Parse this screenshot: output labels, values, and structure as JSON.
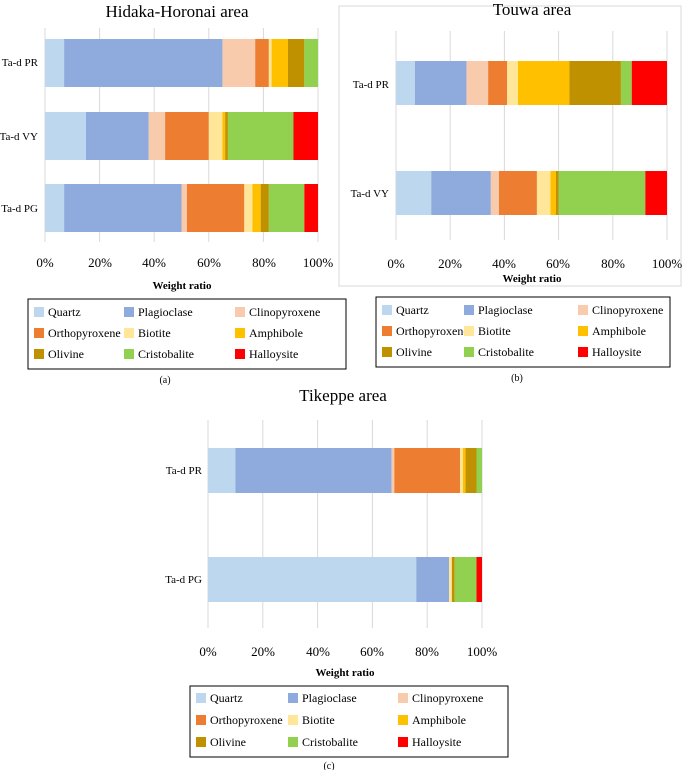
{
  "colors": {
    "Quartz": "#bdd7ee",
    "Plagioclase": "#8faadc",
    "Clinopyroxene": "#f8cbad",
    "Orthopyroxene": "#ed7d31",
    "Biotite": "#ffe699",
    "Amphibole": "#ffc000",
    "Olivine": "#bf9000",
    "Cristobalite": "#92d050",
    "Halloysite": "#ff0000",
    "gridline": "#d9d9d9",
    "text": "#000000"
  },
  "chart_data": [
    {
      "id": "a",
      "type": "stacked-bar-horizontal",
      "title": "Hidaka-Horonai area",
      "xlabel": "Weight ratio",
      "ylabel": "",
      "caption": "(a)",
      "xlim": [
        0,
        100
      ],
      "ticks": [
        "0%",
        "20%",
        "40%",
        "60%",
        "80%",
        "100%"
      ],
      "grid": true,
      "legend_position": "bottom",
      "categories": [
        "Ta-d PR",
        "Ta-d VY",
        "Ta-d PG"
      ],
      "series": [
        {
          "name": "Quartz",
          "values": [
            7,
            15,
            7
          ]
        },
        {
          "name": "Plagioclase",
          "values": [
            58,
            23,
            43
          ]
        },
        {
          "name": "Clinopyroxene",
          "values": [
            12,
            6,
            2
          ]
        },
        {
          "name": "Orthopyroxene",
          "values": [
            5,
            16,
            21
          ]
        },
        {
          "name": "Biotite",
          "values": [
            1,
            5,
            3
          ]
        },
        {
          "name": "Amphibole",
          "values": [
            6,
            1,
            3
          ]
        },
        {
          "name": "Olivine",
          "values": [
            6,
            1,
            3
          ]
        },
        {
          "name": "Cristobalite",
          "values": [
            5,
            24,
            13
          ]
        },
        {
          "name": "Halloysite",
          "values": [
            0,
            9,
            5
          ]
        }
      ]
    },
    {
      "id": "b",
      "type": "stacked-bar-horizontal",
      "title": "Touwa area",
      "xlabel": "Weight ratio",
      "ylabel": "",
      "caption": "(b)",
      "xlim": [
        0,
        100
      ],
      "ticks": [
        "0%",
        "20%",
        "40%",
        "60%",
        "80%",
        "100%"
      ],
      "grid": true,
      "legend_position": "bottom",
      "categories": [
        "Ta-d PR",
        "Ta-d VY"
      ],
      "series": [
        {
          "name": "Quartz",
          "values": [
            7,
            13
          ]
        },
        {
          "name": "Plagioclase",
          "values": [
            19,
            22
          ]
        },
        {
          "name": "Clinopyroxene",
          "values": [
            8,
            3
          ]
        },
        {
          "name": "Orthopyroxene",
          "values": [
            7,
            14
          ]
        },
        {
          "name": "Biotite",
          "values": [
            4,
            5
          ]
        },
        {
          "name": "Amphibole",
          "values": [
            19,
            2
          ]
        },
        {
          "name": "Olivine",
          "values": [
            19,
            1
          ]
        },
        {
          "name": "Cristobalite",
          "values": [
            4,
            32
          ]
        },
        {
          "name": "Halloysite",
          "values": [
            13,
            8
          ]
        }
      ]
    },
    {
      "id": "c",
      "type": "stacked-bar-horizontal",
      "title": "Tikeppe area",
      "xlabel": "Weight ratio",
      "ylabel": "",
      "caption": "(c)",
      "xlim": [
        0,
        100
      ],
      "ticks": [
        "0%",
        "20%",
        "40%",
        "60%",
        "80%",
        "100%"
      ],
      "grid": true,
      "legend_position": "bottom",
      "categories": [
        "Ta-d PR",
        "Ta-d PG"
      ],
      "series": [
        {
          "name": "Quartz",
          "values": [
            10,
            76
          ]
        },
        {
          "name": "Plagioclase",
          "values": [
            57,
            12
          ]
        },
        {
          "name": "Clinopyroxene",
          "values": [
            1,
            0
          ]
        },
        {
          "name": "Orthopyroxene",
          "values": [
            24,
            0
          ]
        },
        {
          "name": "Biotite",
          "values": [
            1,
            1
          ]
        },
        {
          "name": "Amphibole",
          "values": [
            1,
            0
          ]
        },
        {
          "name": "Olivine",
          "values": [
            4,
            1
          ]
        },
        {
          "name": "Cristobalite",
          "values": [
            2,
            8
          ]
        },
        {
          "name": "Halloysite",
          "values": [
            0,
            2
          ]
        }
      ]
    }
  ]
}
